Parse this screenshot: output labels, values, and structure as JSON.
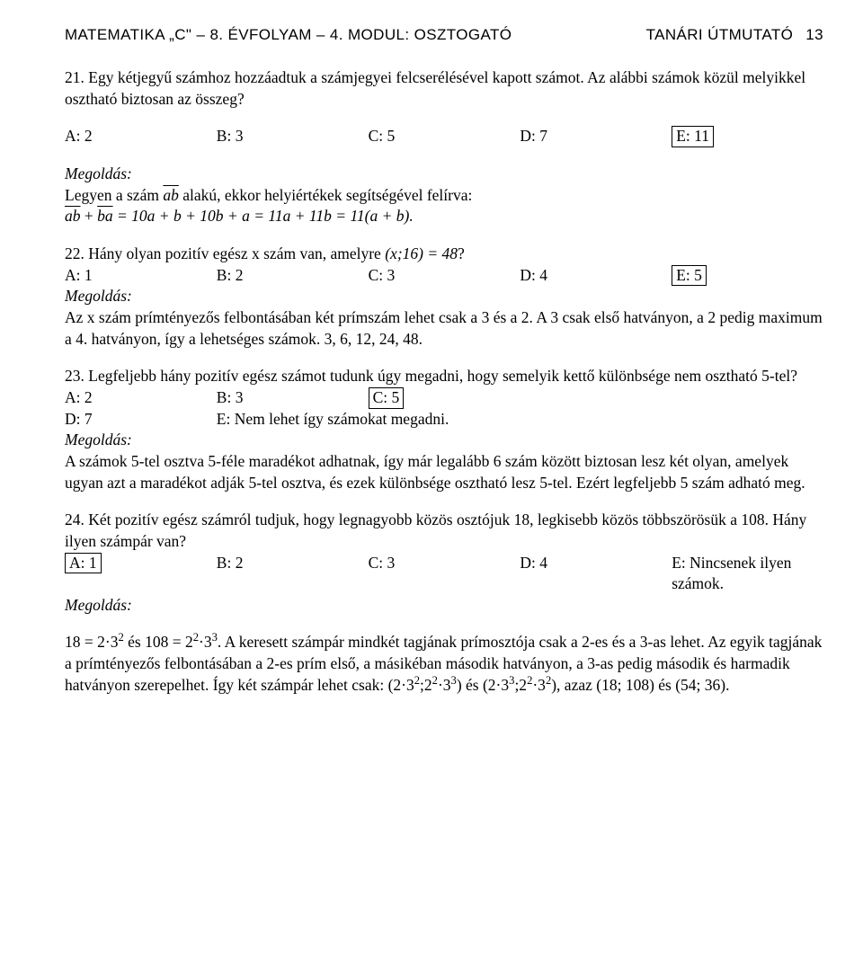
{
  "header": {
    "left": "MATEMATIKA „C\" – 8. ÉVFOLYAM – 4. MODUL: OSZTOGATÓ",
    "right_label": "TANÁRI ÚTMUTATÓ",
    "page": "13"
  },
  "q21": {
    "text1": "21. ",
    "text2": "Egy kétjegyű számhoz hozzáadtuk a számjegyei felcserélésével kapott számot. Az alábbi számok közül melyikkel osztható biztosan az összeg?",
    "opts": {
      "a": "A: 2",
      "b": "B: 3",
      "c": "C: 5",
      "d": "D: 7",
      "e": "E: 11"
    },
    "meg": "Megoldás:",
    "sol1": "Legyen a szám ",
    "sol2": " alakú, ekkor helyiértékek segítségével felírva:",
    "eq1a": "ab",
    "eq1b": "ba",
    "eq1rest": " = 10a + b + 10b + a = 11a + 11b = 11(a + b)."
  },
  "q22": {
    "text1": "22. ",
    "text2": "Hány olyan pozitív egész x szám van, amelyre ",
    "cond": "(x;16) = 48",
    "qmark": "?",
    "opts": {
      "a": "A: 1",
      "b": "B: 2",
      "c": "C: 3",
      "d": "D: 4",
      "e": "E: 5"
    },
    "meg": "Megoldás:",
    "sol": "Az x szám prímtényezős felbontásában két prímszám lehet csak a 3 és a 2. A 3 csak első hatványon, a 2 pedig maximum a 4. hatványon, így a lehetséges számok. 3, 6, 12, 24, 48."
  },
  "q23": {
    "text1": "23. ",
    "text2": "Legfeljebb hány pozitív egész számot tudunk úgy megadni, hogy semelyik kettő különbsége nem osztható 5-tel?",
    "opts": {
      "a": "A: 2",
      "b": "B: 3",
      "c": "C: 5",
      "d": "D: 7",
      "e": "E: Nem lehet így számokat megadni."
    },
    "meg": "Megoldás:",
    "sol": "A számok 5-tel osztva 5-féle maradékot adhatnak, így már legalább 6 szám között biztosan lesz két olyan, amelyek ugyan azt a maradékot adják 5-tel osztva, és ezek különbsége osztható lesz 5-tel. Ezért legfeljebb 5 szám adható meg."
  },
  "q24": {
    "text1": "24. ",
    "text2": "Két pozitív egész számról tudjuk, hogy legnagyobb közös osztójuk 18, legkisebb közös többszörösük a 108. Hány ilyen számpár van?",
    "opts": {
      "a": "A: 1",
      "b": "B: 2",
      "c": "C: 3",
      "d": "D: 4",
      "e": "E: Nincsenek ilyen számok."
    },
    "meg": "Megoldás:",
    "sol1a": "18 = 2·3",
    "sol1b": " és 108 = 2",
    "sol1c": "·3",
    "sol1d": ". A keresett számpár mindkét tagjának prímosztója csak a 2-es és a 3-as lehet. Az egyik tagjának a prímtényezős felbontásában a 2-es prím első, a másikéban második hatványon, a 3-as pedig második és harmadik hatványon szerepelhet. Így két számpár lehet csak: (2·3",
    "sol1e": ";2",
    "sol1f": "·3",
    "sol1g": ") és (2·3",
    "sol1h": ";2",
    "sol1i": "·3",
    "sol1j": "), azaz (18; 108) és (54; 36).",
    "exp2": "2",
    "exp3": "3"
  }
}
